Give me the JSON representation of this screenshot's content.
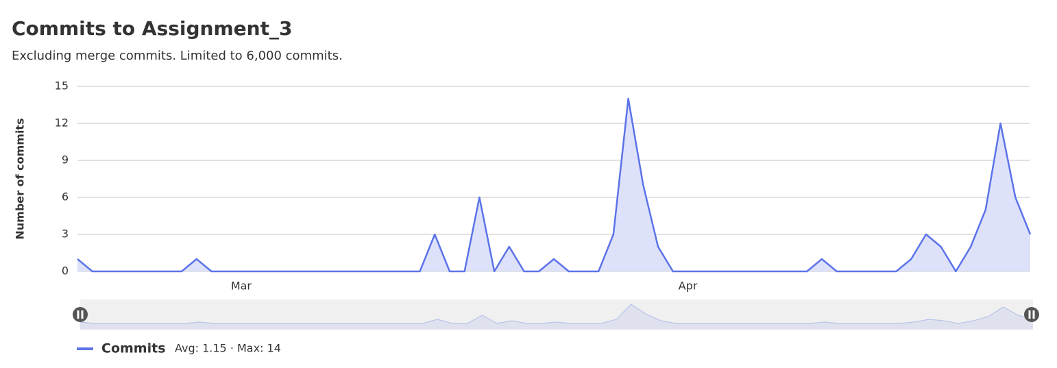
{
  "chart_data": {
    "type": "area",
    "title": "Commits to Assignment_3",
    "subtitle": "Excluding merge commits. Limited to 6,000 commits.",
    "y_label": "Number of commits",
    "categories": [
      null,
      null,
      null,
      null,
      null,
      null,
      null,
      null,
      null,
      null,
      null,
      "Mar",
      null,
      null,
      null,
      null,
      null,
      null,
      null,
      null,
      null,
      null,
      null,
      null,
      null,
      null,
      null,
      null,
      null,
      null,
      null,
      null,
      null,
      null,
      null,
      null,
      null,
      null,
      null,
      null,
      null,
      "Apr",
      null,
      null,
      null,
      null,
      null,
      null,
      null,
      null,
      null,
      null,
      null,
      null,
      null,
      null,
      null,
      null,
      null,
      null,
      null,
      null,
      null,
      null,
      null
    ],
    "series": [
      {
        "name": "Commits",
        "color": "#5b73e8",
        "values": [
          1,
          0,
          0,
          0,
          0,
          0,
          0,
          0,
          1,
          0,
          0,
          0,
          0,
          0,
          0,
          0,
          0,
          0,
          0,
          0,
          0,
          0,
          0,
          0,
          3,
          0,
          0,
          6,
          0,
          2,
          0,
          0,
          1,
          0,
          0,
          0,
          3,
          14,
          7,
          2,
          0,
          0,
          0,
          0,
          0,
          0,
          0,
          0,
          0,
          0,
          1,
          0,
          0,
          0,
          0,
          0,
          1,
          3,
          2,
          0,
          2,
          5,
          12,
          6,
          3
        ]
      }
    ],
    "legend_stats": "Avg: 1.15 · Max: 14",
    "ylim": [
      0,
      15
    ],
    "yticks": [
      0,
      3,
      6,
      9,
      12,
      15
    ],
    "grid": true
  }
}
